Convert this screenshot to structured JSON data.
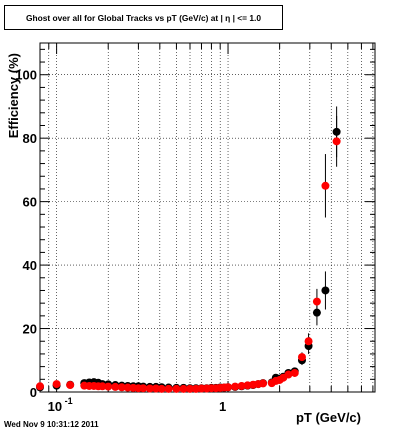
{
  "title": "Ghost over all for Global Tracks vs pT (GeV/c) at |  η | <= 1.0",
  "timestamp": "Wed Nov  9 10:31:12 2011",
  "chart_data": {
    "type": "scatter",
    "title": "Ghost over all for Global Tracks vs pT (GeV/c) at |  η | <= 1.0",
    "xlabel": "pT (GeV/c)",
    "ylabel": "Efficiency (%)",
    "x_scale": "log",
    "xlim": [
      0.08,
      7.2
    ],
    "ylim": [
      0,
      110
    ],
    "grid": true,
    "x_tick_labels": [
      {
        "x": 0.1,
        "label": "10",
        "sup": "-1"
      },
      {
        "x": 1,
        "label": "1",
        "sup": ""
      }
    ],
    "y_tick_labels": [
      {
        "y": 0,
        "label": "0"
      },
      {
        "y": 20,
        "label": "20"
      },
      {
        "y": 40,
        "label": "40"
      },
      {
        "y": 60,
        "label": "60"
      },
      {
        "y": 80,
        "label": "80"
      },
      {
        "y": 100,
        "label": "100"
      }
    ],
    "series": [
      {
        "color": "#000000",
        "points": [
          {
            "x": 0.08,
            "y": 1.5,
            "err": 0.8
          },
          {
            "x": 0.1,
            "y": 2.0,
            "err": 0.6
          },
          {
            "x": 0.12,
            "y": 2.3,
            "err": 0.5
          },
          {
            "x": 0.145,
            "y": 2.8,
            "err": 0.5
          },
          {
            "x": 0.155,
            "y": 3.0,
            "err": 0.4
          },
          {
            "x": 0.165,
            "y": 3.1,
            "err": 0.4
          },
          {
            "x": 0.175,
            "y": 2.9,
            "err": 0.4
          },
          {
            "x": 0.185,
            "y": 2.5,
            "err": 0.4
          },
          {
            "x": 0.2,
            "y": 2.4,
            "err": 0.4
          },
          {
            "x": 0.22,
            "y": 2.2,
            "err": 0.3
          },
          {
            "x": 0.24,
            "y": 2.0,
            "err": 0.3
          },
          {
            "x": 0.26,
            "y": 1.9,
            "err": 0.3
          },
          {
            "x": 0.28,
            "y": 1.8,
            "err": 0.3
          },
          {
            "x": 0.3,
            "y": 1.8,
            "err": 0.3
          },
          {
            "x": 0.32,
            "y": 1.7,
            "err": 0.3
          },
          {
            "x": 0.35,
            "y": 1.6,
            "err": 0.3
          },
          {
            "x": 0.38,
            "y": 1.6,
            "err": 0.3
          },
          {
            "x": 0.41,
            "y": 1.5,
            "err": 0.3
          },
          {
            "x": 0.45,
            "y": 1.4,
            "err": 0.3
          },
          {
            "x": 0.5,
            "y": 1.3,
            "err": 0.3
          },
          {
            "x": 0.55,
            "y": 1.3,
            "err": 0.3
          },
          {
            "x": 0.6,
            "y": 1.2,
            "err": 0.3
          },
          {
            "x": 0.65,
            "y": 1.2,
            "err": 0.3
          },
          {
            "x": 0.7,
            "y": 1.2,
            "err": 0.3
          },
          {
            "x": 0.75,
            "y": 1.2,
            "err": 0.3
          },
          {
            "x": 0.8,
            "y": 1.3,
            "err": 0.3
          },
          {
            "x": 0.85,
            "y": 1.3,
            "err": 0.3
          },
          {
            "x": 0.9,
            "y": 1.4,
            "err": 0.3
          },
          {
            "x": 0.95,
            "y": 1.4,
            "err": 0.3
          },
          {
            "x": 1.0,
            "y": 1.5,
            "err": 0.3
          },
          {
            "x": 1.1,
            "y": 1.6,
            "err": 0.3
          },
          {
            "x": 1.2,
            "y": 1.8,
            "err": 0.4
          },
          {
            "x": 1.3,
            "y": 2.0,
            "err": 0.4
          },
          {
            "x": 1.4,
            "y": 2.2,
            "err": 0.4
          },
          {
            "x": 1.5,
            "y": 2.5,
            "err": 0.5
          },
          {
            "x": 1.6,
            "y": 2.8,
            "err": 0.5
          },
          {
            "x": 1.8,
            "y": 3.0,
            "err": 0.6
          },
          {
            "x": 1.9,
            "y": 4.5,
            "err": 0.8
          },
          {
            "x": 2.0,
            "y": 4.2,
            "err": 0.8
          },
          {
            "x": 2.1,
            "y": 4.8,
            "err": 0.9
          },
          {
            "x": 2.25,
            "y": 6.0,
            "err": 1.0
          },
          {
            "x": 2.45,
            "y": 6.5,
            "err": 1.2
          },
          {
            "x": 2.7,
            "y": 10.0,
            "err": 1.5
          },
          {
            "x": 2.95,
            "y": 14.5,
            "err": 2.5
          },
          {
            "x": 3.3,
            "y": 25.0,
            "err": 4.0
          },
          {
            "x": 3.7,
            "y": 32.0,
            "err": 6.0
          },
          {
            "x": 4.3,
            "y": 82.0,
            "err": 8.0
          }
        ]
      },
      {
        "color": "#ff0000",
        "points": [
          {
            "x": 0.08,
            "y": 1.8,
            "err": 0.8
          },
          {
            "x": 0.1,
            "y": 2.5,
            "err": 0.6
          },
          {
            "x": 0.12,
            "y": 2.2,
            "err": 0.5
          },
          {
            "x": 0.145,
            "y": 2.0,
            "err": 0.5
          },
          {
            "x": 0.155,
            "y": 1.9,
            "err": 0.4
          },
          {
            "x": 0.165,
            "y": 1.9,
            "err": 0.4
          },
          {
            "x": 0.175,
            "y": 1.8,
            "err": 0.4
          },
          {
            "x": 0.185,
            "y": 1.8,
            "err": 0.4
          },
          {
            "x": 0.2,
            "y": 1.7,
            "err": 0.4
          },
          {
            "x": 0.22,
            "y": 1.6,
            "err": 0.3
          },
          {
            "x": 0.24,
            "y": 1.5,
            "err": 0.3
          },
          {
            "x": 0.26,
            "y": 1.4,
            "err": 0.3
          },
          {
            "x": 0.28,
            "y": 1.3,
            "err": 0.3
          },
          {
            "x": 0.3,
            "y": 1.2,
            "err": 0.3
          },
          {
            "x": 0.32,
            "y": 1.2,
            "err": 0.3
          },
          {
            "x": 0.35,
            "y": 1.1,
            "err": 0.3
          },
          {
            "x": 0.38,
            "y": 1.1,
            "err": 0.3
          },
          {
            "x": 0.41,
            "y": 1.0,
            "err": 0.3
          },
          {
            "x": 0.45,
            "y": 1.0,
            "err": 0.3
          },
          {
            "x": 0.5,
            "y": 1.0,
            "err": 0.3
          },
          {
            "x": 0.55,
            "y": 1.0,
            "err": 0.3
          },
          {
            "x": 0.6,
            "y": 1.0,
            "err": 0.3
          },
          {
            "x": 0.65,
            "y": 1.0,
            "err": 0.3
          },
          {
            "x": 0.7,
            "y": 1.1,
            "err": 0.3
          },
          {
            "x": 0.75,
            "y": 1.1,
            "err": 0.3
          },
          {
            "x": 0.8,
            "y": 1.2,
            "err": 0.3
          },
          {
            "x": 0.85,
            "y": 1.2,
            "err": 0.3
          },
          {
            "x": 0.9,
            "y": 1.3,
            "err": 0.3
          },
          {
            "x": 0.95,
            "y": 1.4,
            "err": 0.3
          },
          {
            "x": 1.0,
            "y": 1.5,
            "err": 0.3
          },
          {
            "x": 1.1,
            "y": 1.7,
            "err": 0.3
          },
          {
            "x": 1.2,
            "y": 1.9,
            "err": 0.4
          },
          {
            "x": 1.3,
            "y": 2.1,
            "err": 0.4
          },
          {
            "x": 1.4,
            "y": 2.3,
            "err": 0.4
          },
          {
            "x": 1.5,
            "y": 2.5,
            "err": 0.5
          },
          {
            "x": 1.6,
            "y": 2.7,
            "err": 0.5
          },
          {
            "x": 1.8,
            "y": 2.8,
            "err": 0.6
          },
          {
            "x": 1.9,
            "y": 3.5,
            "err": 0.8
          },
          {
            "x": 2.0,
            "y": 3.8,
            "err": 0.8
          },
          {
            "x": 2.1,
            "y": 4.5,
            "err": 0.9
          },
          {
            "x": 2.25,
            "y": 5.5,
            "err": 1.0
          },
          {
            "x": 2.45,
            "y": 6.0,
            "err": 1.2
          },
          {
            "x": 2.7,
            "y": 11.0,
            "err": 1.5
          },
          {
            "x": 2.95,
            "y": 16.0,
            "err": 2.5
          },
          {
            "x": 3.3,
            "y": 28.5,
            "err": 4.0
          },
          {
            "x": 3.7,
            "y": 65.0,
            "err": 10.0
          },
          {
            "x": 4.3,
            "y": 79.0,
            "err": 8.0
          }
        ]
      }
    ]
  }
}
